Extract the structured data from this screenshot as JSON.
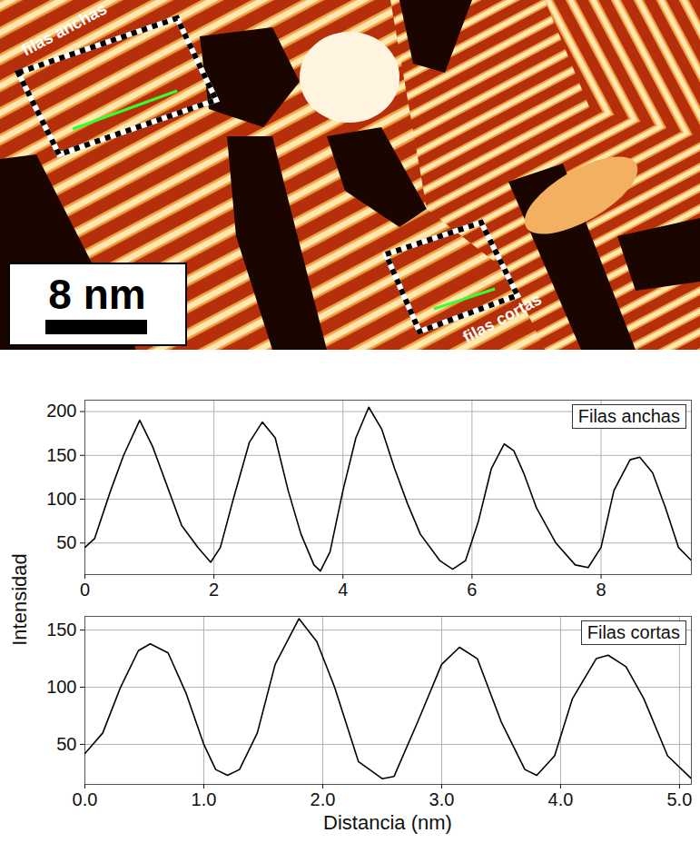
{
  "image": {
    "labels": [
      "filas anchas",
      "filas cortas"
    ],
    "scale_bar": "8 nm"
  },
  "figure": {
    "xlabel": "Distancia (nm)",
    "ylabel": "Intensidad"
  },
  "chart_data": [
    {
      "type": "line",
      "x": [
        0,
        0.15,
        0.4,
        0.6,
        0.85,
        1.05,
        1.3,
        1.5,
        1.75,
        1.95,
        2.1,
        2.3,
        2.55,
        2.75,
        2.95,
        3.15,
        3.35,
        3.55,
        3.65,
        3.8,
        4.0,
        4.2,
        4.4,
        4.6,
        4.8,
        5.0,
        5.2,
        5.5,
        5.7,
        5.9,
        6.1,
        6.3,
        6.5,
        6.65,
        6.8,
        7.0,
        7.3,
        7.6,
        7.8,
        8.0,
        8.2,
        8.45,
        8.6,
        8.8,
        9.0,
        9.2,
        9.4
      ],
      "series": [
        {
          "name": "Filas anchas",
          "color": "#000000",
          "values": [
            45,
            55,
            110,
            150,
            190,
            160,
            110,
            70,
            45,
            28,
            45,
            100,
            165,
            188,
            170,
            110,
            60,
            25,
            18,
            40,
            110,
            170,
            205,
            180,
            135,
            95,
            60,
            30,
            20,
            30,
            75,
            135,
            163,
            155,
            130,
            90,
            50,
            25,
            22,
            45,
            110,
            145,
            148,
            130,
            90,
            45,
            30
          ]
        }
      ],
      "xlim": [
        0,
        9.4
      ],
      "xticks": [
        0,
        2,
        4,
        6,
        8
      ],
      "ylim": [
        14,
        213
      ],
      "yticks": [
        50,
        100,
        150,
        200
      ],
      "grid": true,
      "legend": "top-right"
    },
    {
      "type": "line",
      "x": [
        0,
        0.15,
        0.3,
        0.45,
        0.55,
        0.7,
        0.85,
        1.0,
        1.1,
        1.2,
        1.3,
        1.45,
        1.6,
        1.8,
        1.95,
        2.1,
        2.3,
        2.5,
        2.6,
        2.8,
        3.0,
        3.15,
        3.3,
        3.5,
        3.7,
        3.8,
        3.95,
        4.1,
        4.3,
        4.4,
        4.55,
        4.7,
        4.9,
        5.1
      ],
      "series": [
        {
          "name": "Filas cortas",
          "color": "#000000",
          "values": [
            42,
            60,
            100,
            132,
            138,
            130,
            95,
            50,
            28,
            23,
            28,
            60,
            120,
            160,
            140,
            100,
            35,
            20,
            22,
            70,
            120,
            135,
            125,
            70,
            28,
            23,
            40,
            90,
            125,
            128,
            118,
            90,
            40,
            20
          ]
        }
      ],
      "xlim": [
        0,
        5.1
      ],
      "xticks": [
        0,
        1,
        2,
        3,
        4,
        5
      ],
      "ylim": [
        15,
        162
      ],
      "yticks": [
        50,
        100,
        150
      ],
      "grid": true,
      "legend": "top-right"
    }
  ]
}
